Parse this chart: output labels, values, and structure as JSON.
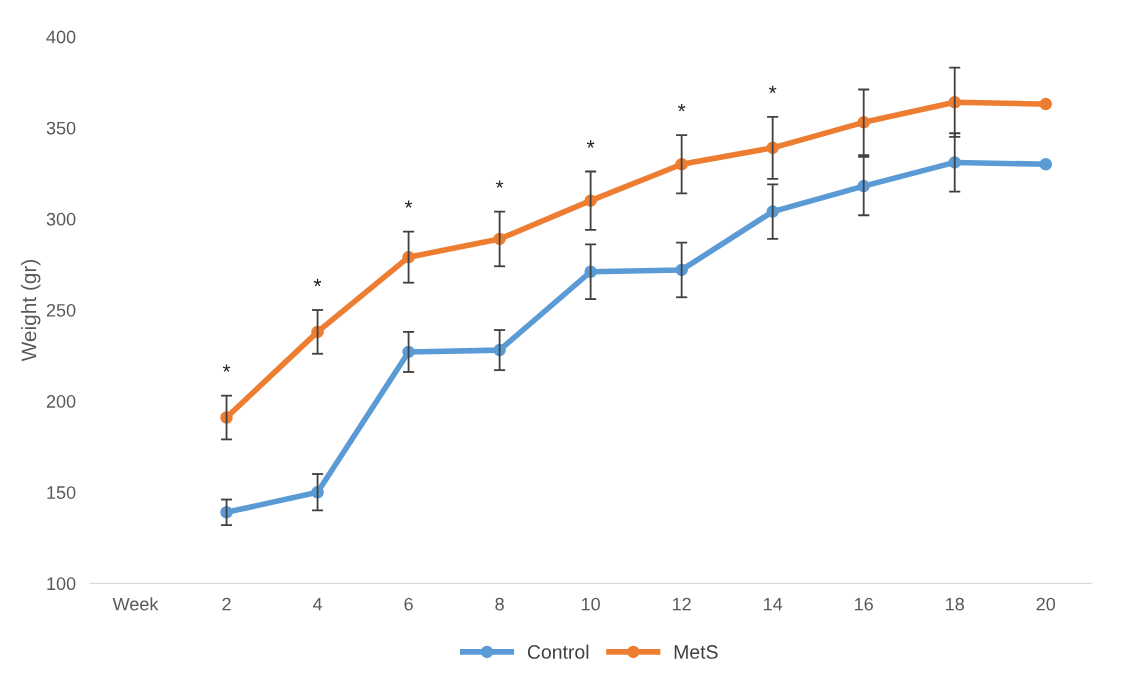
{
  "chart_data": {
    "type": "line",
    "ylabel": "Weight (gr)",
    "categories": [
      "Week",
      "2",
      "4",
      "6",
      "8",
      "10",
      "12",
      "14",
      "16",
      "18",
      "20"
    ],
    "series": [
      {
        "name": "Control",
        "color": "#5b9bd5",
        "values": [
          null,
          139,
          150,
          227,
          228,
          271,
          272,
          304,
          318,
          331,
          330
        ],
        "errors": [
          null,
          7,
          10,
          11,
          11,
          15,
          15,
          15,
          16,
          16,
          null
        ]
      },
      {
        "name": "MetS",
        "color": "#ed7d31",
        "values": [
          null,
          191,
          238,
          279,
          289,
          310,
          330,
          339,
          353,
          364,
          363
        ],
        "errors": [
          null,
          12,
          12,
          14,
          15,
          16,
          16,
          17,
          18,
          19,
          null
        ]
      }
    ],
    "ylim": [
      100,
      400
    ],
    "yticks": [
      100,
      150,
      200,
      250,
      300,
      350,
      400
    ],
    "marker": "circle",
    "line_style": "solid",
    "grid": false,
    "legend": "bottom",
    "annotations": [
      "*",
      "*",
      "*",
      "*",
      "*",
      "*",
      "*"
    ]
  }
}
